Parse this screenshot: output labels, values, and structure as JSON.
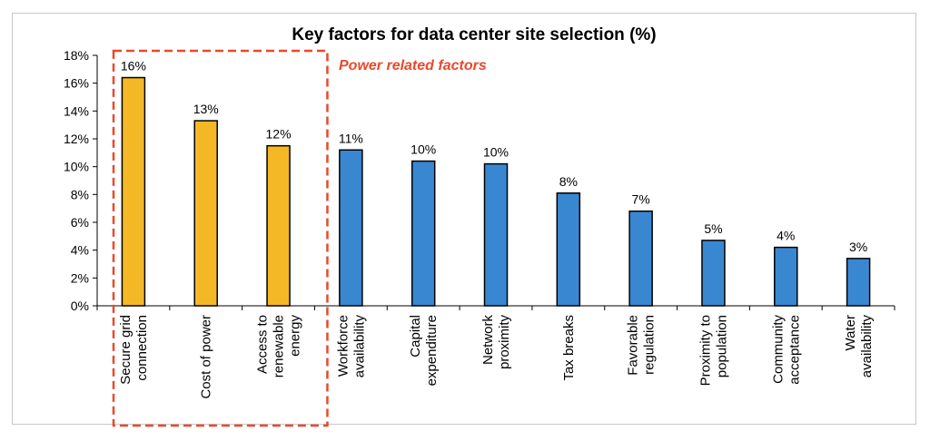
{
  "chart_data": {
    "type": "bar",
    "title": "Key factors for data center site selection (%)",
    "xlabel": "",
    "ylabel": "",
    "ylim": [
      0,
      18
    ],
    "yticks": [
      "0%",
      "2%",
      "4%",
      "6%",
      "8%",
      "10%",
      "12%",
      "14%",
      "16%",
      "18%"
    ],
    "categories": [
      [
        "Secure grid",
        "connection"
      ],
      [
        "Cost of power"
      ],
      [
        "Access to",
        "renewable",
        "energy"
      ],
      [
        "Workforce",
        "availability"
      ],
      [
        "Capital",
        "expenditure"
      ],
      [
        "Network",
        "proximity"
      ],
      [
        "Tax breaks"
      ],
      [
        "Favorable",
        "regulation"
      ],
      [
        "Proximity to",
        "population"
      ],
      [
        "Community",
        "acceptance"
      ],
      [
        "Water",
        "availability"
      ]
    ],
    "values": [
      16.4,
      13.3,
      11.5,
      11.2,
      10.4,
      10.2,
      8.1,
      6.8,
      4.7,
      4.2,
      3.4
    ],
    "data_labels": [
      "16%",
      "13%",
      "12%",
      "11%",
      "10%",
      "10%",
      "8%",
      "7%",
      "5%",
      "4%",
      "3%"
    ],
    "highlight_count": 3,
    "colors": {
      "highlight": "#F4B827",
      "default": "#3A87D1",
      "annotation": "#E8492B",
      "bar_edge": "#000000"
    },
    "annotation": "Power related factors",
    "grid": false,
    "legend": "none"
  }
}
